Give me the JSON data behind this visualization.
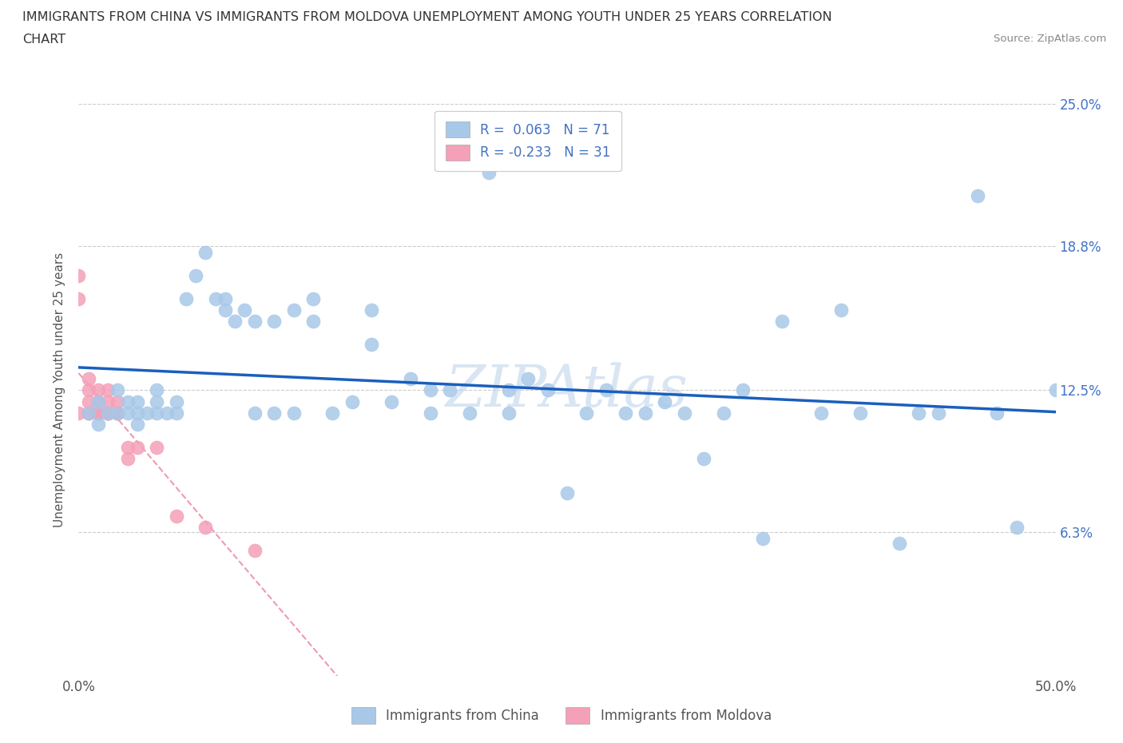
{
  "title_line1": "IMMIGRANTS FROM CHINA VS IMMIGRANTS FROM MOLDOVA UNEMPLOYMENT AMONG YOUTH UNDER 25 YEARS CORRELATION",
  "title_line2": "CHART",
  "source": "Source: ZipAtlas.com",
  "ylabel": "Unemployment Among Youth under 25 years",
  "xlim": [
    0.0,
    0.5
  ],
  "ylim": [
    0.0,
    0.25
  ],
  "r_china": 0.063,
  "n_china": 71,
  "r_moldova": -0.233,
  "n_moldova": 31,
  "color_china": "#a8c8e8",
  "color_moldova": "#f4a0b8",
  "trend_color_china": "#1a5fbd",
  "trend_color_moldova": "#e87090",
  "watermark": "ZIPAtlas",
  "china_x": [
    0.005,
    0.01,
    0.01,
    0.015,
    0.02,
    0.02,
    0.025,
    0.025,
    0.03,
    0.03,
    0.03,
    0.035,
    0.04,
    0.04,
    0.04,
    0.045,
    0.05,
    0.05,
    0.055,
    0.06,
    0.065,
    0.07,
    0.075,
    0.075,
    0.08,
    0.085,
    0.09,
    0.09,
    0.1,
    0.1,
    0.11,
    0.11,
    0.12,
    0.12,
    0.13,
    0.14,
    0.15,
    0.15,
    0.16,
    0.17,
    0.18,
    0.18,
    0.19,
    0.2,
    0.21,
    0.22,
    0.22,
    0.23,
    0.24,
    0.25,
    0.26,
    0.27,
    0.28,
    0.29,
    0.3,
    0.31,
    0.32,
    0.33,
    0.34,
    0.35,
    0.36,
    0.38,
    0.39,
    0.4,
    0.42,
    0.43,
    0.44,
    0.46,
    0.47,
    0.48,
    0.5
  ],
  "china_y": [
    0.115,
    0.11,
    0.12,
    0.115,
    0.115,
    0.125,
    0.115,
    0.12,
    0.11,
    0.115,
    0.12,
    0.115,
    0.115,
    0.12,
    0.125,
    0.115,
    0.12,
    0.115,
    0.165,
    0.175,
    0.185,
    0.165,
    0.16,
    0.165,
    0.155,
    0.16,
    0.155,
    0.115,
    0.155,
    0.115,
    0.115,
    0.16,
    0.155,
    0.165,
    0.115,
    0.12,
    0.16,
    0.145,
    0.12,
    0.13,
    0.125,
    0.115,
    0.125,
    0.115,
    0.22,
    0.125,
    0.115,
    0.13,
    0.125,
    0.08,
    0.115,
    0.125,
    0.115,
    0.115,
    0.12,
    0.115,
    0.095,
    0.115,
    0.125,
    0.06,
    0.155,
    0.115,
    0.16,
    0.115,
    0.058,
    0.115,
    0.115,
    0.21,
    0.115,
    0.065,
    0.125
  ],
  "moldova_x": [
    0.0,
    0.0,
    0.0,
    0.005,
    0.005,
    0.005,
    0.005,
    0.005,
    0.01,
    0.01,
    0.01,
    0.01,
    0.01,
    0.01,
    0.015,
    0.015,
    0.015,
    0.015,
    0.015,
    0.015,
    0.02,
    0.02,
    0.02,
    0.02,
    0.025,
    0.025,
    0.03,
    0.04,
    0.05,
    0.065,
    0.09
  ],
  "moldova_y": [
    0.175,
    0.165,
    0.115,
    0.115,
    0.12,
    0.125,
    0.115,
    0.13,
    0.115,
    0.12,
    0.125,
    0.115,
    0.115,
    0.12,
    0.115,
    0.12,
    0.115,
    0.125,
    0.115,
    0.115,
    0.115,
    0.12,
    0.115,
    0.115,
    0.1,
    0.095,
    0.1,
    0.1,
    0.07,
    0.065,
    0.055
  ],
  "grid_color": "#cccccc",
  "background_color": "#ffffff"
}
